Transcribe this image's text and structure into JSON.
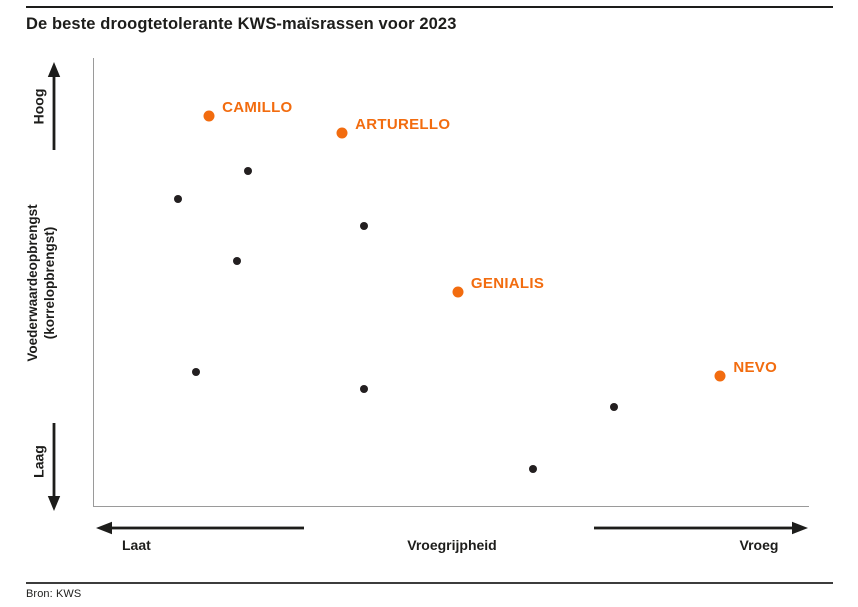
{
  "header": {
    "title": "De beste droogtetolerante KWS-maïsrassen voor 2023"
  },
  "footer": {
    "source": "Bron: KWS"
  },
  "colors": {
    "accent_orange": "#f26c0f",
    "dot_black": "#231f20",
    "axis_line_gray": "#9a9a9a",
    "text_dark": "#1d1d1b"
  },
  "chart_data": {
    "type": "scatter",
    "title": "De beste droogtetolerante KWS-maïsrassen voor 2023",
    "grid": false,
    "legend": "none",
    "x_axis": {
      "label": "Vroegrijpheid",
      "left_label": "Laat",
      "right_label": "Vroeg",
      "range": [
        0,
        100
      ]
    },
    "y_axis": {
      "label": "Voederwaardeopbrengst (korrelopbrengst)",
      "label_line1": "Voederwaardeopbrengst",
      "label_line2": "(korrelopbrengst)",
      "top_label": "Hoog",
      "bottom_label": "Laag",
      "range": [
        0,
        100
      ]
    },
    "series": [
      {
        "name": "highlighted-varieties",
        "color": "#f26c0f",
        "point_radius": 5.5,
        "labeled": true,
        "points": [
          {
            "label": "CAMILLO",
            "x": 16.1,
            "y": 87.0
          },
          {
            "label": "ARTURELLO",
            "x": 34.7,
            "y": 83.2
          },
          {
            "label": "GENIALIS",
            "x": 50.9,
            "y": 47.8
          },
          {
            "label": "NEVO",
            "x": 87.6,
            "y": 29.1
          }
        ]
      },
      {
        "name": "other-varieties",
        "color": "#231f20",
        "point_radius": 4,
        "labeled": false,
        "points": [
          {
            "x": 21.5,
            "y": 74.7
          },
          {
            "x": 11.7,
            "y": 68.6
          },
          {
            "x": 37.8,
            "y": 62.6
          },
          {
            "x": 20.0,
            "y": 54.7
          },
          {
            "x": 14.3,
            "y": 29.8
          },
          {
            "x": 37.8,
            "y": 26.2
          },
          {
            "x": 72.7,
            "y": 22.0
          },
          {
            "x": 61.4,
            "y": 8.3
          }
        ]
      }
    ]
  }
}
